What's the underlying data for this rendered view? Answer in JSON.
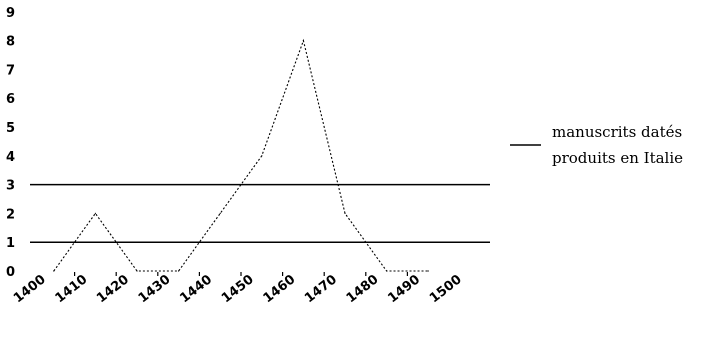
{
  "chart_data": {
    "type": "line",
    "x": [
      1405,
      1415,
      1425,
      1435,
      1445,
      1455,
      1465,
      1475,
      1485,
      1495
    ],
    "series": [
      {
        "name": "manuscrits datés produits en Italie",
        "values": [
          0,
          2,
          0,
          0,
          2,
          4,
          8,
          2,
          0,
          0
        ],
        "color": "#000000",
        "style": "dotted"
      }
    ],
    "reference_lines": [
      1,
      3
    ],
    "y_ticks": [
      "0",
      "1",
      "2",
      "3",
      "4",
      "5",
      "6",
      "7",
      "8",
      "9"
    ],
    "x_ticks": [
      "1400",
      "1410",
      "1420",
      "1430",
      "1440",
      "1450",
      "1460",
      "1470",
      "1480",
      "1490",
      "1500"
    ],
    "ylim": [
      0,
      9
    ],
    "xlim": [
      1400,
      1500
    ],
    "legend": {
      "placement": "right",
      "lines": [
        "manuscrits datés",
        "produits en Italie"
      ]
    },
    "grid": false
  }
}
